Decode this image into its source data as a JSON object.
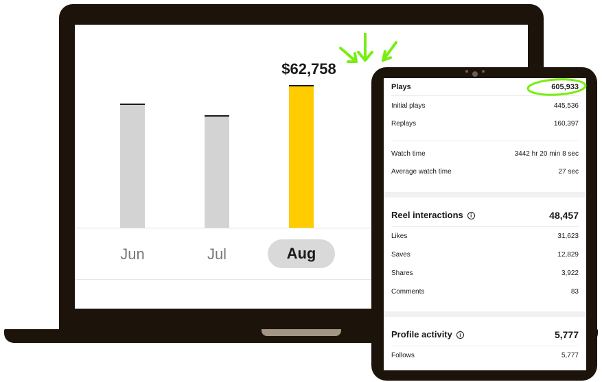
{
  "laptop_chart": {
    "highlight_value": "$62,758",
    "colors": {
      "bar": "#d3d3d3",
      "highlight": "#ffcc00",
      "annotation": "#77ee11"
    },
    "months": [
      {
        "label": "Jun",
        "relative_value": 0.87
      },
      {
        "label": "Jul",
        "relative_value": 0.79
      },
      {
        "label": "Aug",
        "relative_value": 1.0,
        "active": true
      }
    ]
  },
  "tablet": {
    "plays": {
      "label": "Plays",
      "value": "605,933",
      "initial_label": "Initial plays",
      "initial_value": "445,536",
      "replays_label": "Replays",
      "replays_value": "160,397",
      "watch_label": "Watch time",
      "watch_value": "3442 hr 20 min 8 sec",
      "avg_label": "Average watch time",
      "avg_value": "27 sec"
    },
    "interactions": {
      "label": "Reel interactions",
      "value": "48,457",
      "likes_label": "Likes",
      "likes_value": "31,623",
      "saves_label": "Saves",
      "saves_value": "12,829",
      "shares_label": "Shares",
      "shares_value": "3,922",
      "comments_label": "Comments",
      "comments_value": "83"
    },
    "profile": {
      "label": "Profile activity",
      "value": "5,777",
      "follows_label": "Follows",
      "follows_value": "5,777"
    }
  }
}
